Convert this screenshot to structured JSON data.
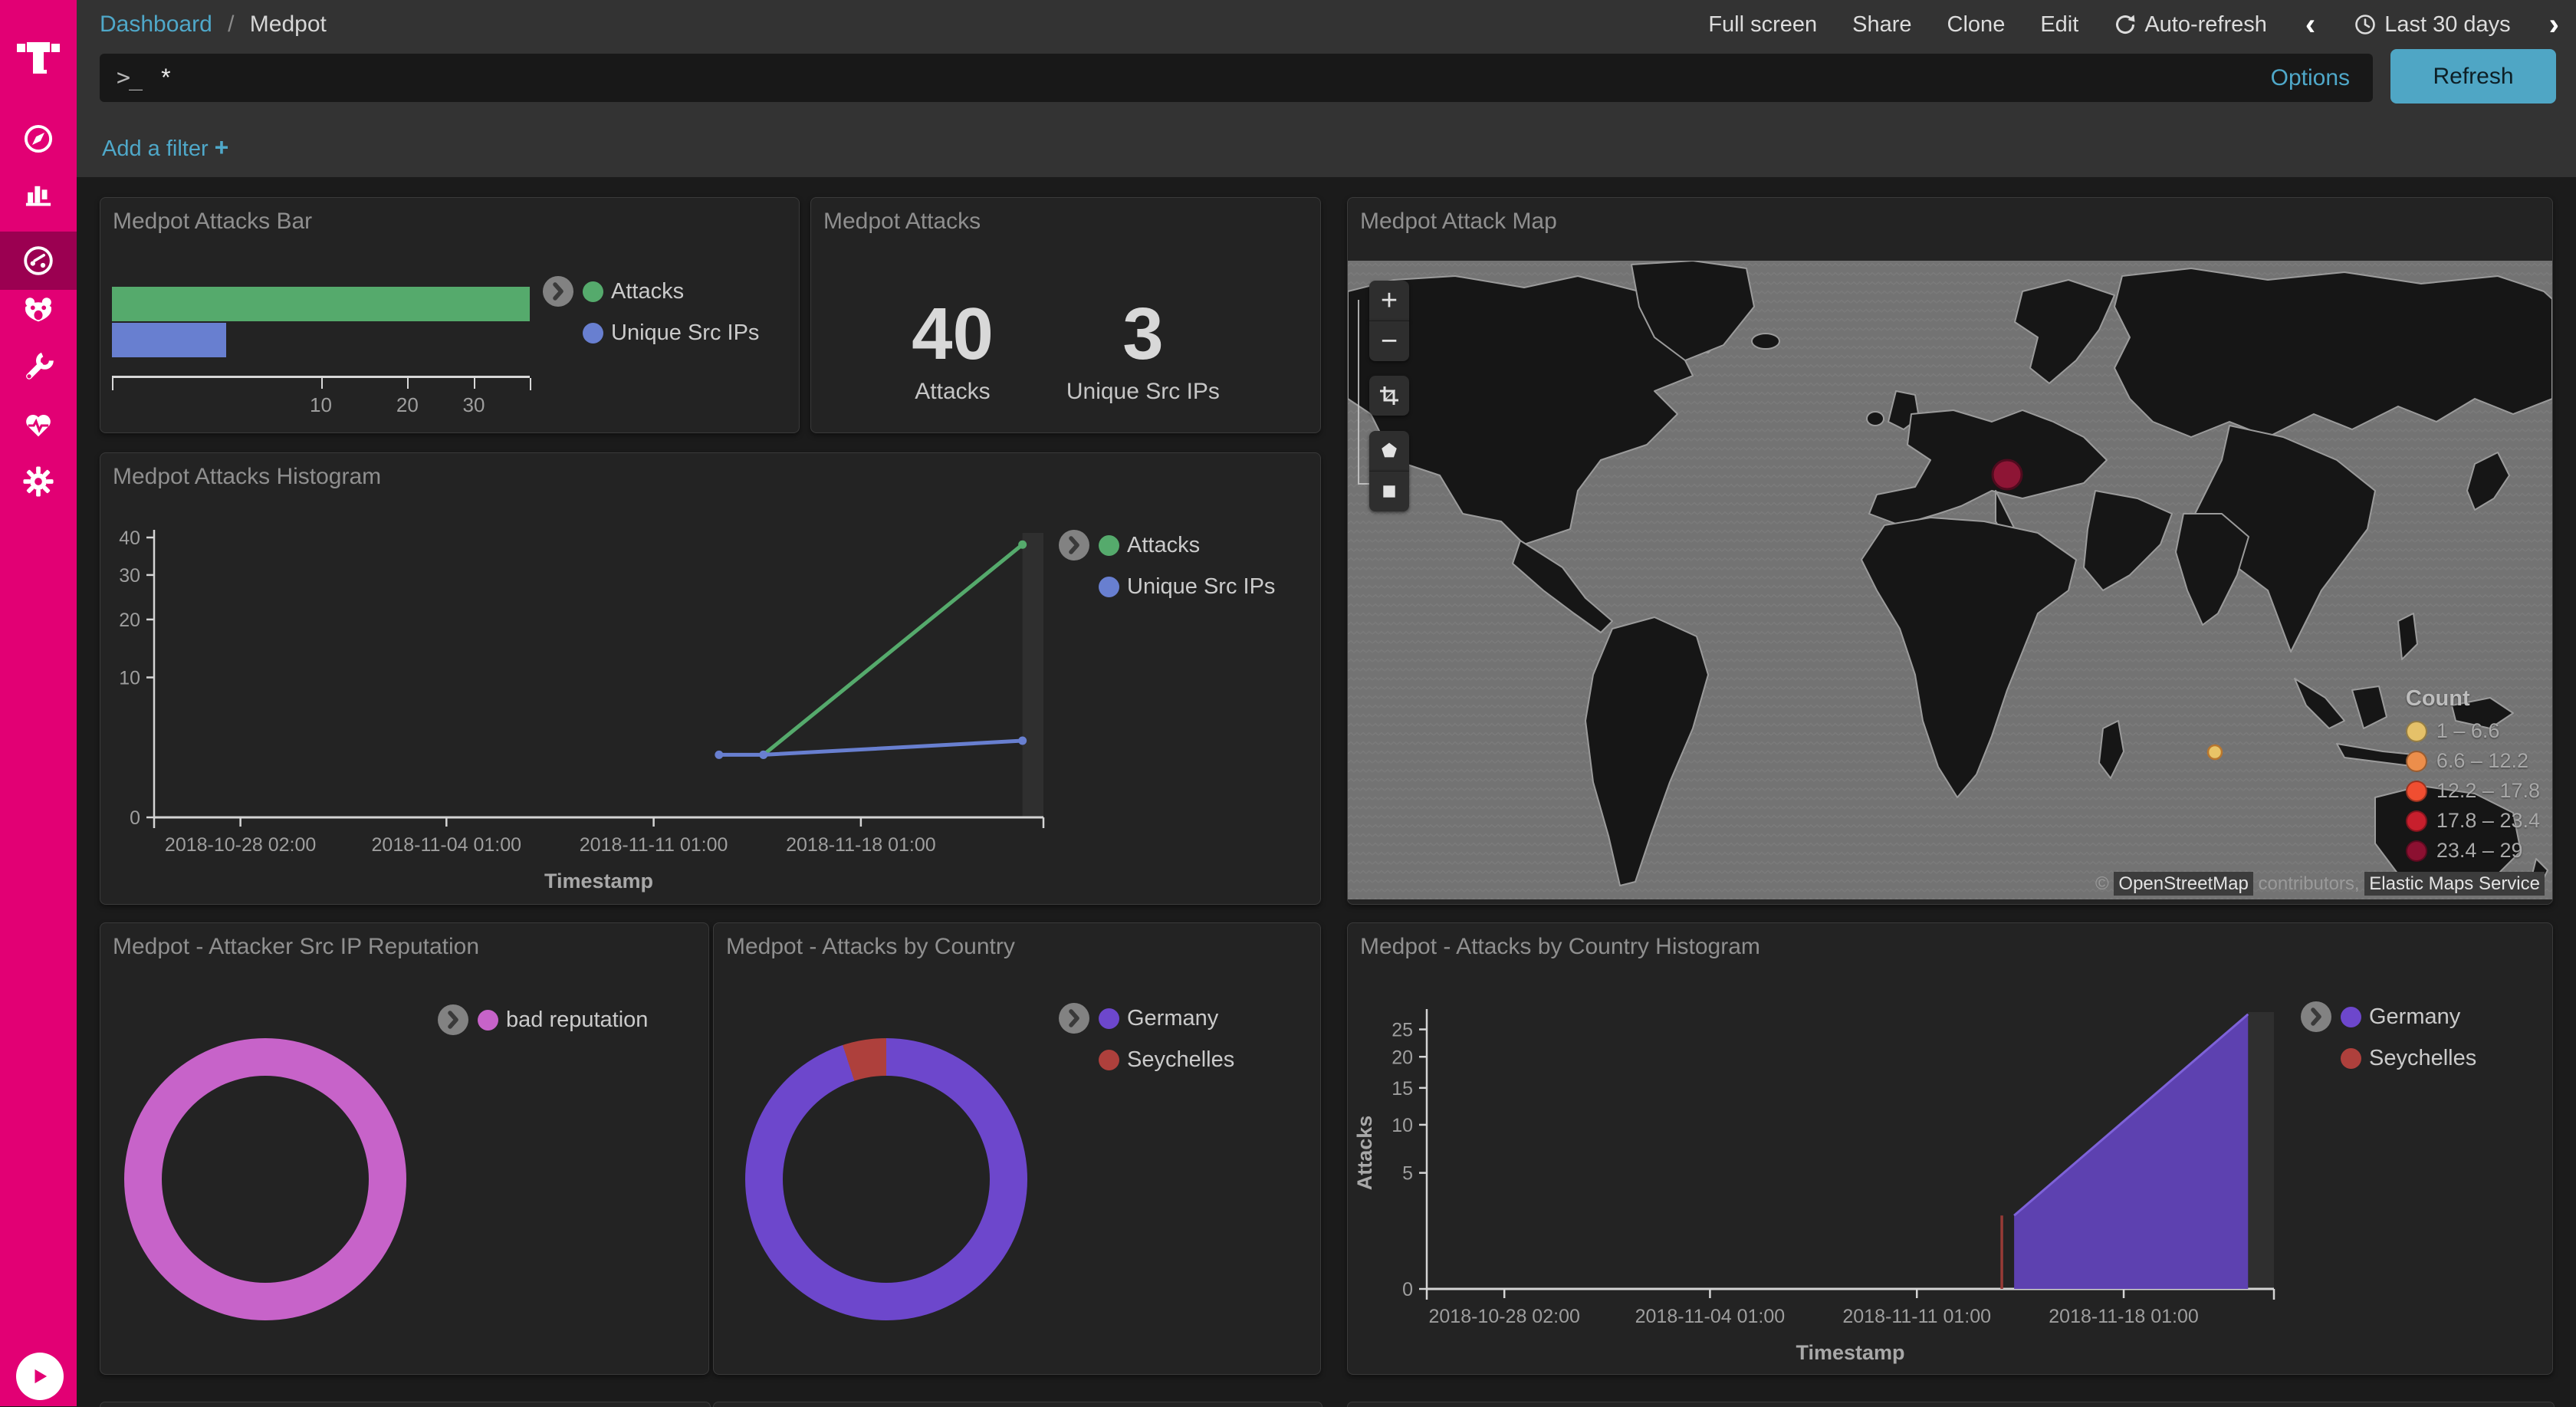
{
  "brand": {
    "accent_color": "#e20074"
  },
  "topnav": {
    "breadcrumb_section": "Dashboard",
    "breadcrumb_sep": "/",
    "breadcrumb_page": "Medpot",
    "items": [
      "Full screen",
      "Share",
      "Clone",
      "Edit"
    ],
    "autorefresh": "Auto-refresh",
    "prev": "‹",
    "time_range": "Last 30 days",
    "next": "›"
  },
  "search": {
    "prompt": ">_",
    "query": "*",
    "options": "Options",
    "refresh": "Refresh"
  },
  "filters": {
    "add_filter": "Add a filter",
    "plus": "+"
  },
  "sidebar": {
    "items": [
      "discover",
      "visualize",
      "dashboard",
      "timelion",
      "dev-tools",
      "monitoring",
      "management"
    ],
    "active": "dashboard"
  },
  "panels": {
    "attacks_bar": {
      "title": "Medpot Attacks Bar"
    },
    "attacks_metric": {
      "title": "Medpot Attacks",
      "metrics": [
        {
          "value": "40",
          "label": "Attacks"
        },
        {
          "value": "3",
          "label": "Unique Src IPs"
        }
      ]
    },
    "attack_map": {
      "title": "Medpot Attack Map",
      "legend_title": "Count",
      "legend": [
        {
          "label": "1 – 6.6",
          "color": "#e5c169"
        },
        {
          "label": "6.6 – 12.2",
          "color": "#ec8e4b"
        },
        {
          "label": "12.2 – 17.8",
          "color": "#f04e31"
        },
        {
          "label": "17.8 – 23.4",
          "color": "#c81f2d"
        },
        {
          "label": "23.4 – 29",
          "color": "#8c1031"
        }
      ],
      "points": [
        {
          "area": "Western Germany",
          "bucket": "23.4 – 29",
          "color": "#8e1535"
        },
        {
          "area": "Indian Ocean near Seychelles",
          "bucket": "1 – 6.6",
          "color": "#e9c467"
        }
      ],
      "attribution": {
        "copyright": "©",
        "osm": "OpenStreetMap",
        "contributors": " contributors, ",
        "ems": "Elastic Maps Service"
      }
    },
    "attacks_histogram": {
      "title": "Medpot Attacks Histogram"
    },
    "reputation": {
      "title": "Medpot - Attacker Src IP Reputation"
    },
    "by_country": {
      "title": "Medpot - Attacks by Country"
    },
    "by_country_histogram": {
      "title": "Medpot - Attacks by Country Histogram"
    }
  },
  "chart_data": [
    {
      "id": "attacks-bar",
      "type": "bar",
      "orientation": "horizontal",
      "title": "Medpot Attacks Bar",
      "categories": [
        "Attacks",
        "Unique Src IPs"
      ],
      "values": [
        40,
        3
      ],
      "colors": [
        "#55aa6c",
        "#687fd0"
      ],
      "xlim": [
        0,
        40
      ],
      "x_scale": "sqrt",
      "x_ticks": [
        10,
        20,
        30
      ],
      "legend_position": "right"
    },
    {
      "id": "attacks-histogram",
      "type": "line",
      "title": "Medpot Attacks Histogram",
      "xlabel": "Timestamp",
      "ylabel": "",
      "ylim": [
        0,
        40
      ],
      "y_scale": "sqrt",
      "y_ticks": [
        0,
        10,
        20,
        30,
        40
      ],
      "x_domain": [
        "2018-10-25 04:00",
        "2018-11-24 05:00"
      ],
      "x_ticks": [
        "2018-10-28 02:00",
        "2018-11-04 01:00",
        "2018-11-11 01:00",
        "2018-11-18 01:00"
      ],
      "end_band_from": "2018-11-23 12:00",
      "series": [
        {
          "name": "Attacks",
          "color": "#55aa6c",
          "points": [
            [
              "2018-11-14 18:00",
              2
            ],
            [
              "2018-11-23 12:00",
              38
            ]
          ]
        },
        {
          "name": "Unique Src IPs",
          "color": "#687fd0",
          "points": [
            [
              "2018-11-13 06:00",
              2
            ],
            [
              "2018-11-14 18:00",
              2
            ],
            [
              "2018-11-23 12:00",
              3
            ]
          ]
        }
      ],
      "legend_position": "right"
    },
    {
      "id": "reputation-donut",
      "type": "pie",
      "donut": true,
      "title": "Medpot - Attacker Src IP Reputation",
      "slices": [
        {
          "label": "bad reputation",
          "value": 40,
          "color": "#c763c9"
        }
      ],
      "legend_position": "right"
    },
    {
      "id": "country-donut",
      "type": "pie",
      "donut": true,
      "title": "Medpot - Attacks by Country",
      "slices": [
        {
          "label": "Germany",
          "value": 38,
          "color": "#6d47cc"
        },
        {
          "label": "Seychelles",
          "value": 2,
          "color": "#ae403c"
        }
      ],
      "legend_position": "right"
    },
    {
      "id": "country-histogram",
      "type": "area",
      "title": "Medpot - Attacks by Country Histogram",
      "xlabel": "Timestamp",
      "ylabel": "Attacks",
      "ylim": [
        0,
        27.5
      ],
      "y_scale": "sqrt",
      "y_ticks": [
        0,
        5,
        10,
        15,
        20,
        25
      ],
      "x_domain": [
        "2018-10-25 11:00",
        "2018-11-23 03:00"
      ],
      "x_ticks": [
        "2018-10-28 02:00",
        "2018-11-04 01:00",
        "2018-11-11 01:00",
        "2018-11-18 01:00"
      ],
      "end_band_from": "2018-11-22 06:00",
      "series": [
        {
          "name": "Germany",
          "color": "#7e62d9",
          "fill": "#5d41b0",
          "points": [
            [
              "2018-11-14 08:00",
              2
            ],
            [
              "2018-11-22 06:00",
              28
            ]
          ]
        },
        {
          "name": "Seychelles",
          "color": "#973a36",
          "style": "spike",
          "points": [
            [
              "2018-11-13 22:00",
              2
            ]
          ]
        }
      ],
      "legend_position": "right"
    }
  ]
}
